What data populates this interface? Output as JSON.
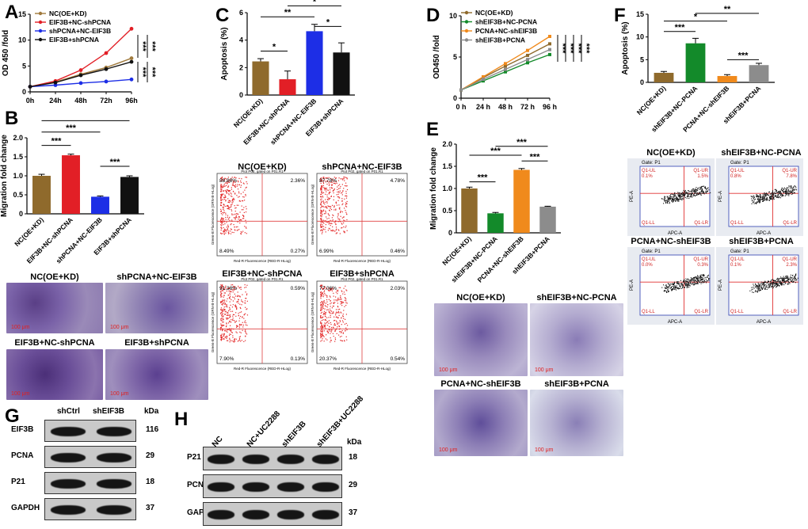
{
  "panels": {
    "A": "A",
    "B": "B",
    "C": "C",
    "D": "D",
    "E": "E",
    "F": "F",
    "G": "G",
    "H": "H"
  },
  "chart_data": [
    {
      "id": "A",
      "type": "line",
      "xlabel": "",
      "ylabel": "OD 450 /fold",
      "categories": [
        "0h",
        "24h",
        "48h",
        "72h",
        "96h"
      ],
      "ylim": [
        0,
        15
      ],
      "yticks": [
        0,
        5,
        10,
        15
      ],
      "series": [
        {
          "name": "NC(OE+KD)",
          "color": "#a07a3c",
          "values": [
            1,
            1.9,
            3.4,
            4.7,
            6.5
          ]
        },
        {
          "name": "EIF3B+NC-shPCNA",
          "color": "#e21f26",
          "values": [
            1,
            2.1,
            4.2,
            7.5,
            12.2
          ]
        },
        {
          "name": "shPCNA+NC-EIF3B",
          "color": "#1d2ee6",
          "values": [
            1,
            1.3,
            1.7,
            2.0,
            2.4
          ]
        },
        {
          "name": "EIF3B+shPCNA",
          "color": "#111111",
          "values": [
            1,
            1.8,
            3.2,
            4.4,
            5.8
          ]
        }
      ],
      "significance": [
        "***",
        "***",
        "***",
        "***"
      ]
    },
    {
      "id": "B",
      "type": "bar",
      "ylabel": "Migration fold change",
      "categories": [
        "NC(OE+KD)",
        "EIF3B+NC-shPCNA",
        "shPCNA+NC-EIF3B",
        "EIF3B+shPCNA"
      ],
      "values": [
        1.0,
        1.54,
        0.45,
        0.97
      ],
      "errors": [
        0.04,
        0.03,
        0.02,
        0.03
      ],
      "colors": [
        "#8f6a2c",
        "#e21f26",
        "#1d2ee6",
        "#111111"
      ],
      "ylim": [
        0,
        2.0
      ],
      "yticks": [
        0,
        0.5,
        1.0,
        1.5,
        2.0
      ],
      "ytick_labels": [
        "0",
        "0.5",
        "1.0",
        "1.5",
        "2.0"
      ],
      "significance": [
        "***",
        "***",
        "***",
        "***"
      ]
    },
    {
      "id": "C",
      "type": "bar",
      "ylabel": "Apoptosis (%)",
      "categories": [
        "NC(OE+KD)",
        "EIF3B+NC-shPCNA",
        "shPCNA+NC-EIF3B",
        "EIF3B+shPCNA"
      ],
      "values": [
        2.45,
        1.15,
        4.65,
        3.1
      ],
      "errors": [
        0.2,
        0.6,
        0.5,
        0.7
      ],
      "colors": [
        "#8f6a2c",
        "#e21f26",
        "#1d2ee6",
        "#111111"
      ],
      "ylim": [
        0,
        6
      ],
      "yticks": [
        0,
        2,
        4,
        6
      ],
      "significance": [
        "*",
        "**",
        "*",
        "*"
      ]
    },
    {
      "id": "D",
      "type": "line",
      "ylabel": "OD450 /fold",
      "categories": [
        "0 h",
        "24 h",
        "48 h",
        "72 h",
        "96 h"
      ],
      "ylim": [
        0,
        10
      ],
      "yticks": [
        0,
        5,
        10
      ],
      "series": [
        {
          "name": "NC(OE+KD)",
          "color": "#8f6a2c",
          "values": [
            1,
            2.5,
            3.9,
            5.2,
            6.6
          ]
        },
        {
          "name": "shEIF3B+NC-PCNA",
          "color": "#138a2a",
          "values": [
            1,
            2.1,
            3.2,
            4.3,
            5.3
          ]
        },
        {
          "name": "PCNA+NC-shEIF3B",
          "color": "#f08a1c",
          "values": [
            1,
            2.6,
            4.2,
            5.8,
            7.5
          ]
        },
        {
          "name": "shEIF3B+PCNA",
          "color": "#8c8c8c",
          "values": [
            1,
            2.3,
            3.5,
            4.7,
            5.9
          ]
        }
      ],
      "significance": [
        "***",
        "***",
        "***",
        "***"
      ]
    },
    {
      "id": "E",
      "type": "bar",
      "ylabel": "Migration fold change",
      "categories": [
        "NC(OE+KD)",
        "shEIF3B+NC-PCNA",
        "PCNA+NC-shEIF3B",
        "shEIF3B+PCNA"
      ],
      "values": [
        1.0,
        0.44,
        1.42,
        0.59
      ],
      "errors": [
        0.03,
        0.02,
        0.03,
        0.01
      ],
      "colors": [
        "#8f6a2c",
        "#138a2a",
        "#f08a1c",
        "#8c8c8c"
      ],
      "ylim": [
        0,
        2.0
      ],
      "yticks": [
        0,
        0.5,
        1.0,
        1.5,
        2.0
      ],
      "ytick_labels": [
        "0",
        "0.5",
        "1.0",
        "1.5",
        "2.0"
      ],
      "significance": [
        "***",
        "***",
        "***",
        "***"
      ]
    },
    {
      "id": "F",
      "type": "bar",
      "ylabel": "Apoptosis (%)",
      "categories": [
        "NC(OE+KD)",
        "shEIF3B+NC-PCNA",
        "PCNA+NC-shEIF3B",
        "shEIF3B+PCNA"
      ],
      "values": [
        2.1,
        8.6,
        1.4,
        3.8
      ],
      "errors": [
        0.3,
        1.1,
        0.3,
        0.4
      ],
      "colors": [
        "#8f6a2c",
        "#138a2a",
        "#f08a1c",
        "#8c8c8c"
      ],
      "ylim": [
        0,
        15
      ],
      "yticks": [
        0,
        5,
        10,
        15
      ],
      "significance": [
        "***",
        "*",
        "**",
        "***"
      ]
    }
  ],
  "micrographs_B": {
    "tl": "NC(OE+KD)",
    "tr": "shPCNA+NC-EIF3B",
    "bl": "EIF3B+NC-shPCNA",
    "br": "EIF3B+shPCNA",
    "scale": "100 μm"
  },
  "micrographs_E": {
    "tl": "NC(OE+KD)",
    "tr": "shEIF3B+NC-PCNA",
    "bl": "PCNA+NC-shEIF3B",
    "br": "shEIF3B+PCNA",
    "scale": "100 μm"
  },
  "flow_C": {
    "tl": {
      "title": "NC(OE+KD)",
      "q1": "88.88%",
      "q2": "2.36%",
      "q3": "8.49%",
      "q4": "0.27%"
    },
    "tr": {
      "title": "shPCNA+NC-EIF3B",
      "q1": "87.78%",
      "q2": "4.78%",
      "q3": "6.99%",
      "q4": "0.46%"
    },
    "bl": {
      "title": "EIF3B+NC-shPCNA",
      "q1": "91.38%",
      "q2": "0.59%",
      "q3": "7.90%",
      "q4": "0.13%"
    },
    "br": {
      "title": "EIF3B+shPCNA",
      "q1": "77.06%",
      "q2": "2.03%",
      "q3": "20.37%",
      "q4": "0.54%"
    },
    "xlabel": "Red-R Fluorescence (RED-R-HLog)",
    "ylabel": "Green-B Fluorescence (GRN-B-HLog)",
    "header": "Plot P02, gated on P01.R1"
  },
  "flow_F": {
    "tl": {
      "title": "NC(OE+KD)",
      "gate": "Gate: P1",
      "ul": "Q1-UL",
      "ur": "Q1-UR",
      "ll": "Q1-LL",
      "lr": "Q1-LR",
      "v_ul": "0.1%",
      "v_ur": "1.5%",
      "v_ll": "",
      "v_lr": ""
    },
    "tr": {
      "title": "shEIF3B+NC-PCNA",
      "gate": "Gate: P1",
      "ul": "Q1-UL",
      "ur": "Q1-UR",
      "ll": "Q1-LL",
      "lr": "Q1-LR",
      "v_ul": "0.8%",
      "v_ur": "7.8%",
      "v_ll": "",
      "v_lr": ""
    },
    "bl": {
      "title": "PCNA+NC-shEIF3B",
      "gate": "Gate: P1",
      "ul": "Q1-UL",
      "ur": "Q1-UR",
      "ll": "Q1-LL",
      "lr": "Q1-LR",
      "v_ul": "0.0%",
      "v_ur": "0.3%",
      "v_ll": "",
      "v_lr": ""
    },
    "br": {
      "title": "shEIF3B+PCNA",
      "gate": "Gate: P1",
      "ul": "Q1-UL",
      "ur": "Q1-UR",
      "ll": "Q1-LL",
      "lr": "Q1-LR",
      "v_ul": "0.1%",
      "v_ur": "2.3%",
      "v_ll": "",
      "v_lr": ""
    },
    "xlabel": "APC-A",
    "ylabel": "PE-A"
  },
  "blot_G": {
    "cols": [
      "shCtrl",
      "shEIF3B"
    ],
    "unit": "kDa",
    "rows": [
      {
        "name": "EIF3B",
        "kda": "116"
      },
      {
        "name": "PCNA",
        "kda": "29"
      },
      {
        "name": "P21",
        "kda": "18"
      },
      {
        "name": "GAPDH",
        "kda": "37"
      }
    ]
  },
  "blot_H": {
    "cols": [
      "NC",
      "NC+UC2288",
      "shEIF3B",
      "shEIF3B+UC2288"
    ],
    "unit": "kDa",
    "rows": [
      {
        "name": "P21",
        "kda": "18"
      },
      {
        "name": "PCNA",
        "kda": "29"
      },
      {
        "name": "GAPDH",
        "kda": "37"
      }
    ]
  }
}
